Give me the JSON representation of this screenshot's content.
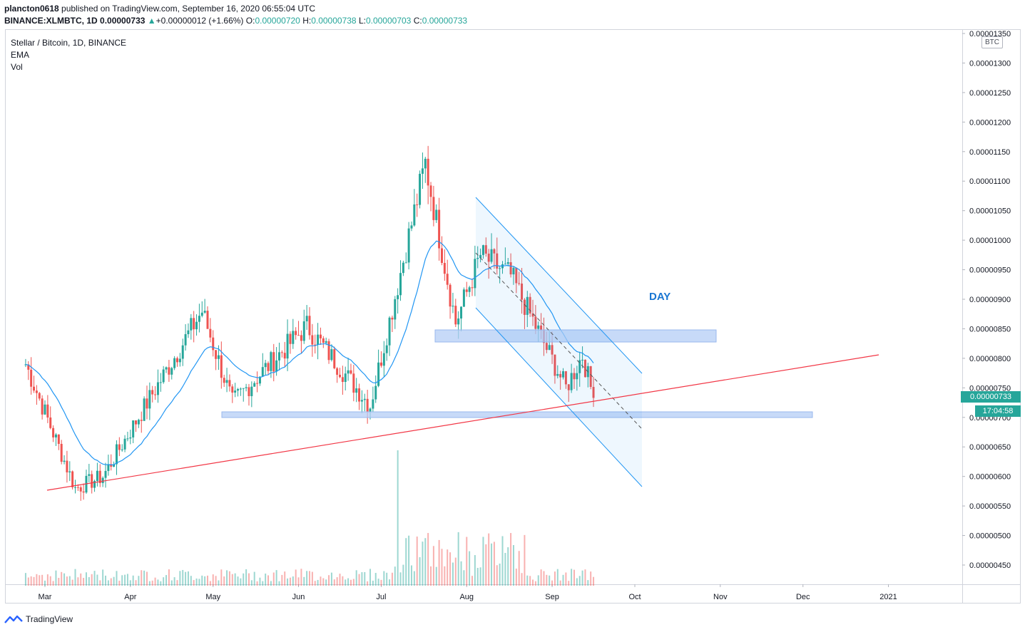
{
  "header": {
    "user": "plancton0618",
    "published_text": " published on TradingView.com, September 16, 2020 06:55:04 UTC",
    "symbol": "BINANCE:XLMBTC, 1D",
    "last": "0.00000733",
    "change_arrow": "▲",
    "change": "+0.00000012 (+1.66%)",
    "o_label": "O:",
    "o": "0.00000720",
    "h_label": "H:",
    "h": "0.00000738",
    "l_label": "L:",
    "l": "0.00000703",
    "c_label": "C:",
    "c": "0.00000733"
  },
  "legend": {
    "title": "Stellar / Bitcoin, 1D, BINANCE",
    "ema": "EMA",
    "vol": "Vol"
  },
  "price_tag": "0.00000733",
  "timer_tag": "17:04:58",
  "currency_badge": "BTC",
  "footer": {
    "brand": "TradingView",
    "logo_icon": "tradingview-logo-icon"
  },
  "colors": {
    "up": "#26a69a",
    "down": "#ef5350",
    "ema": "#2196f3",
    "trendline": "#f23645",
    "channel": "#2196f3",
    "zone": "#b4cdf5",
    "day_label": "#1976d2"
  },
  "chart_data": {
    "type": "candlestick",
    "title": "Stellar / Bitcoin, 1D, BINANCE",
    "annotation": "DAY",
    "x_ticks": [
      "Mar",
      "Apr",
      "May",
      "Jun",
      "Jul",
      "Aug",
      "Sep",
      "Oct",
      "Nov",
      "Dec",
      "2021"
    ],
    "y_ticks": [
      "0.00001350",
      "0.00001300",
      "0.00001250",
      "0.00001200",
      "0.00001150",
      "0.00001100",
      "0.00001050",
      "0.00001000",
      "0.00000950",
      "0.00000900",
      "0.00000850",
      "0.00000800",
      "0.00000750",
      "0.00000700",
      "0.00000650",
      "0.00000600",
      "0.00000550",
      "0.00000500",
      "0.00000450"
    ],
    "y_range": [
      4.2e-06,
      1.36e-05
    ],
    "x_start": "2020-02-23",
    "x_end": "2021-01-31",
    "key_points": [
      {
        "date": "2020-02-23",
        "close": 7.9e-06
      },
      {
        "date": "2020-03-12",
        "low": 5.8e-06
      },
      {
        "date": "2020-03-22",
        "close": 6e-06
      },
      {
        "date": "2020-04-27",
        "high": 9.3e-06,
        "close": 8.8e-06
      },
      {
        "date": "2020-05-08",
        "close": 7.25e-06
      },
      {
        "date": "2020-06-04",
        "close": 8.55e-06
      },
      {
        "date": "2020-06-27",
        "low": 6.65e-06,
        "close": 7.2e-06
      },
      {
        "date": "2020-07-17",
        "high": 1.18e-05,
        "close": 1.13e-05
      },
      {
        "date": "2020-07-28",
        "close": 8.6e-06
      },
      {
        "date": "2020-08-06",
        "close": 9.75e-06
      },
      {
        "date": "2020-08-17",
        "high": 1.005e-05,
        "close": 9.4e-06
      },
      {
        "date": "2020-09-06",
        "low": 7.2e-06,
        "close": 7.5e-06
      },
      {
        "date": "2020-09-12",
        "close": 8.05e-06
      },
      {
        "date": "2020-09-16",
        "close": 7.33e-06
      }
    ],
    "volume_note": "volume bars shown at bottom, highest near mid-July"
  }
}
